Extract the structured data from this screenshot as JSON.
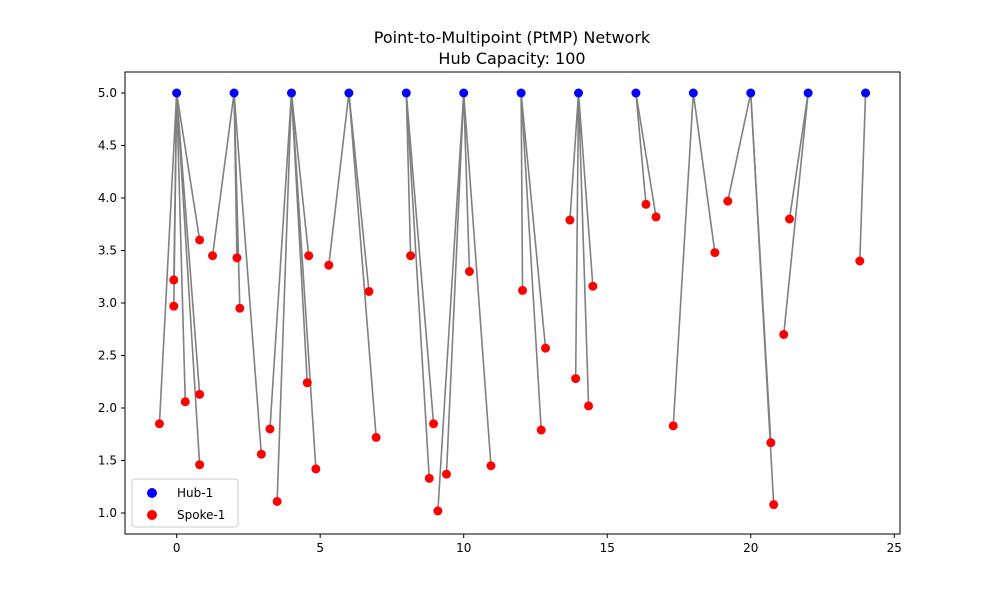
{
  "chart_data": {
    "type": "scatter",
    "title": "Point-to-Multipoint (PtMP) Network",
    "subtitle": "Hub Capacity: 100",
    "xlim": [
      -1.8,
      25.2
    ],
    "ylim": [
      0.8,
      5.2
    ],
    "x_ticks": [
      0,
      5,
      10,
      15,
      20,
      25
    ],
    "y_ticks": [
      1.0,
      1.5,
      2.0,
      2.5,
      3.0,
      3.5,
      4.0,
      4.5,
      5.0
    ],
    "grid": false,
    "legend_position": "lower-left",
    "colors": {
      "hub": "#0000ff",
      "spoke": "#ff0000",
      "link": "#808080"
    },
    "series": [
      {
        "name": "Hub-1",
        "points": [
          [
            0,
            5
          ],
          [
            2,
            5
          ],
          [
            4,
            5
          ],
          [
            6,
            5
          ],
          [
            8,
            5
          ],
          [
            10,
            5
          ],
          [
            12,
            5
          ],
          [
            14,
            5
          ],
          [
            16,
            5
          ],
          [
            18,
            5
          ],
          [
            20,
            5
          ],
          [
            22,
            5
          ],
          [
            24,
            5
          ]
        ]
      },
      {
        "name": "Spoke-1",
        "points": [
          [
            -0.6,
            1.85
          ],
          [
            -0.1,
            3.22
          ],
          [
            -0.1,
            2.97
          ],
          [
            0.3,
            2.06
          ],
          [
            0.8,
            2.13
          ],
          [
            0.8,
            1.46
          ],
          [
            0.8,
            3.6
          ],
          [
            1.25,
            3.45
          ],
          [
            2.1,
            3.43
          ],
          [
            2.2,
            2.95
          ],
          [
            2.95,
            1.56
          ],
          [
            3.25,
            1.8
          ],
          [
            3.5,
            1.11
          ],
          [
            4.55,
            2.24
          ],
          [
            4.6,
            3.45
          ],
          [
            4.85,
            1.42
          ],
          [
            5.3,
            3.36
          ],
          [
            6.7,
            3.11
          ],
          [
            6.95,
            1.72
          ],
          [
            8.15,
            3.45
          ],
          [
            8.8,
            1.33
          ],
          [
            8.95,
            1.85
          ],
          [
            9.1,
            1.02
          ],
          [
            9.4,
            1.37
          ],
          [
            10.2,
            3.3
          ],
          [
            10.95,
            1.45
          ],
          [
            12.05,
            3.12
          ],
          [
            12.7,
            1.79
          ],
          [
            12.85,
            2.57
          ],
          [
            13.7,
            3.79
          ],
          [
            13.9,
            2.28
          ],
          [
            14.35,
            2.02
          ],
          [
            14.5,
            3.16
          ],
          [
            16.35,
            3.94
          ],
          [
            16.7,
            3.82
          ],
          [
            17.3,
            1.83
          ],
          [
            18.75,
            3.48
          ],
          [
            19.2,
            3.97
          ],
          [
            20.7,
            1.67
          ],
          [
            20.8,
            1.08
          ],
          [
            21.15,
            2.7
          ],
          [
            21.35,
            3.8
          ],
          [
            23.8,
            3.4
          ]
        ]
      }
    ],
    "links": [
      [
        0,
        0
      ],
      [
        0,
        1
      ],
      [
        0,
        2
      ],
      [
        0,
        3
      ],
      [
        0,
        4
      ],
      [
        0,
        5
      ],
      [
        0,
        6
      ],
      [
        1,
        7
      ],
      [
        1,
        8
      ],
      [
        1,
        9
      ],
      [
        1,
        10
      ],
      [
        2,
        11
      ],
      [
        2,
        12
      ],
      [
        2,
        13
      ],
      [
        2,
        14
      ],
      [
        2,
        15
      ],
      [
        3,
        16
      ],
      [
        3,
        17
      ],
      [
        3,
        18
      ],
      [
        4,
        19
      ],
      [
        4,
        20
      ],
      [
        4,
        21
      ],
      [
        5,
        22
      ],
      [
        5,
        23
      ],
      [
        5,
        24
      ],
      [
        5,
        25
      ],
      [
        6,
        26
      ],
      [
        6,
        27
      ],
      [
        6,
        28
      ],
      [
        7,
        29
      ],
      [
        7,
        30
      ],
      [
        7,
        31
      ],
      [
        7,
        32
      ],
      [
        8,
        33
      ],
      [
        8,
        34
      ],
      [
        9,
        35
      ],
      [
        9,
        36
      ],
      [
        10,
        37
      ],
      [
        10,
        38
      ],
      [
        10,
        39
      ],
      [
        11,
        40
      ],
      [
        11,
        41
      ],
      [
        12,
        42
      ]
    ]
  }
}
